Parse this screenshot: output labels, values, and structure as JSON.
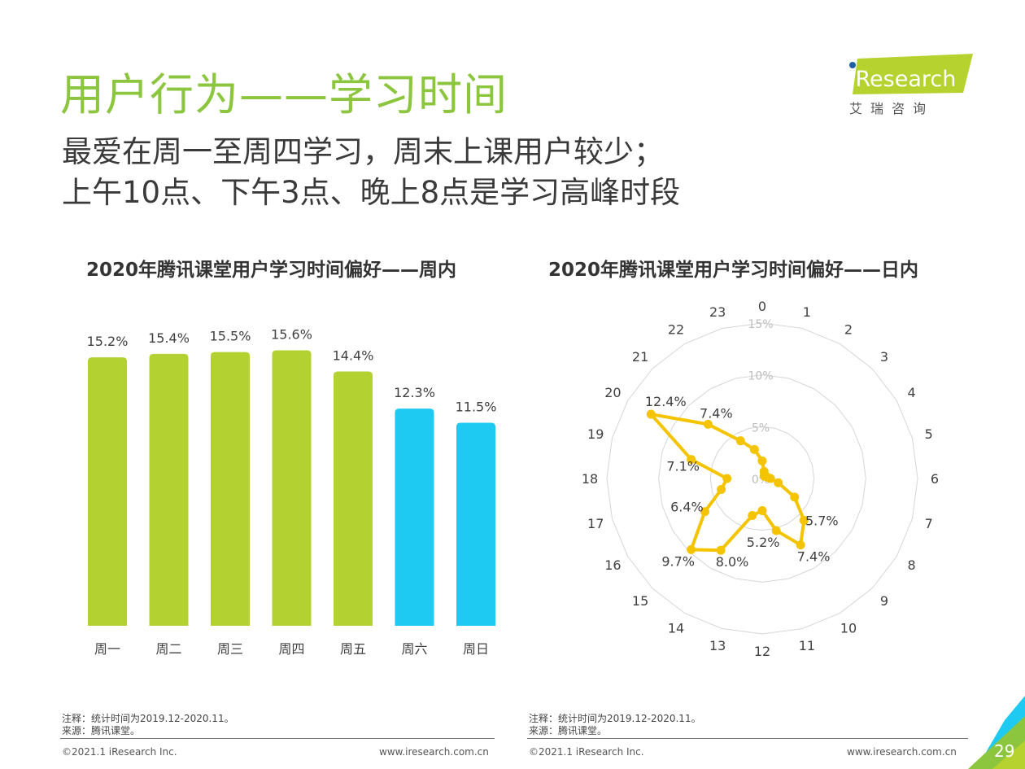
{
  "title": "用户行为——学习时间",
  "subtitle_lines": [
    "最爱在周一至周四学习，周末上课用户较少；",
    "上午10点、下午3点、晚上8点是学习高峰时段"
  ],
  "logo": {
    "brand": "iResearch",
    "chinese": "艾 瑞 咨 询",
    "colors": {
      "green": "#b5d22e",
      "blue": "#1f5fa8"
    }
  },
  "chart_data": [
    {
      "type": "bar",
      "title": "2020年腾讯课堂用户学习时间偏好——周内",
      "categories": [
        "周一",
        "周二",
        "周三",
        "周四",
        "周五",
        "周六",
        "周日"
      ],
      "values": [
        15.2,
        15.4,
        15.5,
        15.6,
        14.4,
        12.3,
        11.5
      ],
      "data_labels": [
        "15.2%",
        "15.4%",
        "15.5%",
        "15.6%",
        "14.4%",
        "12.3%",
        "11.5%"
      ],
      "colors": [
        "#b3d232",
        "#b3d232",
        "#b3d232",
        "#b3d232",
        "#b3d232",
        "#1ec9f2",
        "#1ec9f2"
      ],
      "grid": false
    },
    {
      "type": "radar",
      "title": "2020年腾讯课堂用户学习时间偏好——日内",
      "categories": [
        "0",
        "1",
        "2",
        "3",
        "4",
        "5",
        "6",
        "7",
        "8",
        "9",
        "10",
        "11",
        "12",
        "13",
        "14",
        "15",
        "16",
        "17",
        "18",
        "19",
        "20",
        "21",
        "22",
        "23"
      ],
      "values": [
        1.7,
        0.7,
        0.4,
        0.3,
        0.4,
        0.5,
        0.8,
        1.6,
        3.6,
        5.7,
        7.4,
        5.2,
        3.1,
        3.7,
        8.0,
        9.7,
        6.4,
        4.1,
        3.4,
        7.1,
        12.4,
        7.4,
        4.2,
        2.9
      ],
      "labeled_points": {
        "9": "5.7%",
        "10": "7.4%",
        "11": "5.2%",
        "14": "8.0%",
        "15": "9.7%",
        "16": "6.4%",
        "19": "7.1%",
        "20": "12.4%",
        "21": "7.4%"
      },
      "radial_ticks": [
        "0%",
        "5%",
        "10%",
        "15%"
      ],
      "radial_range": [
        0,
        15
      ],
      "color": "#f5c400"
    }
  ],
  "notes": {
    "left": [
      "注释：统计时间为2019.12-2020.11。",
      "来源：腾讯课堂。"
    ],
    "right": [
      "注释：统计时间为2019.12-2020.11。",
      "来源：腾讯课堂。"
    ]
  },
  "footer": {
    "copyright": "©2021.1 iResearch Inc.",
    "website": "www.iresearch.com.cn",
    "page_number": "29"
  }
}
